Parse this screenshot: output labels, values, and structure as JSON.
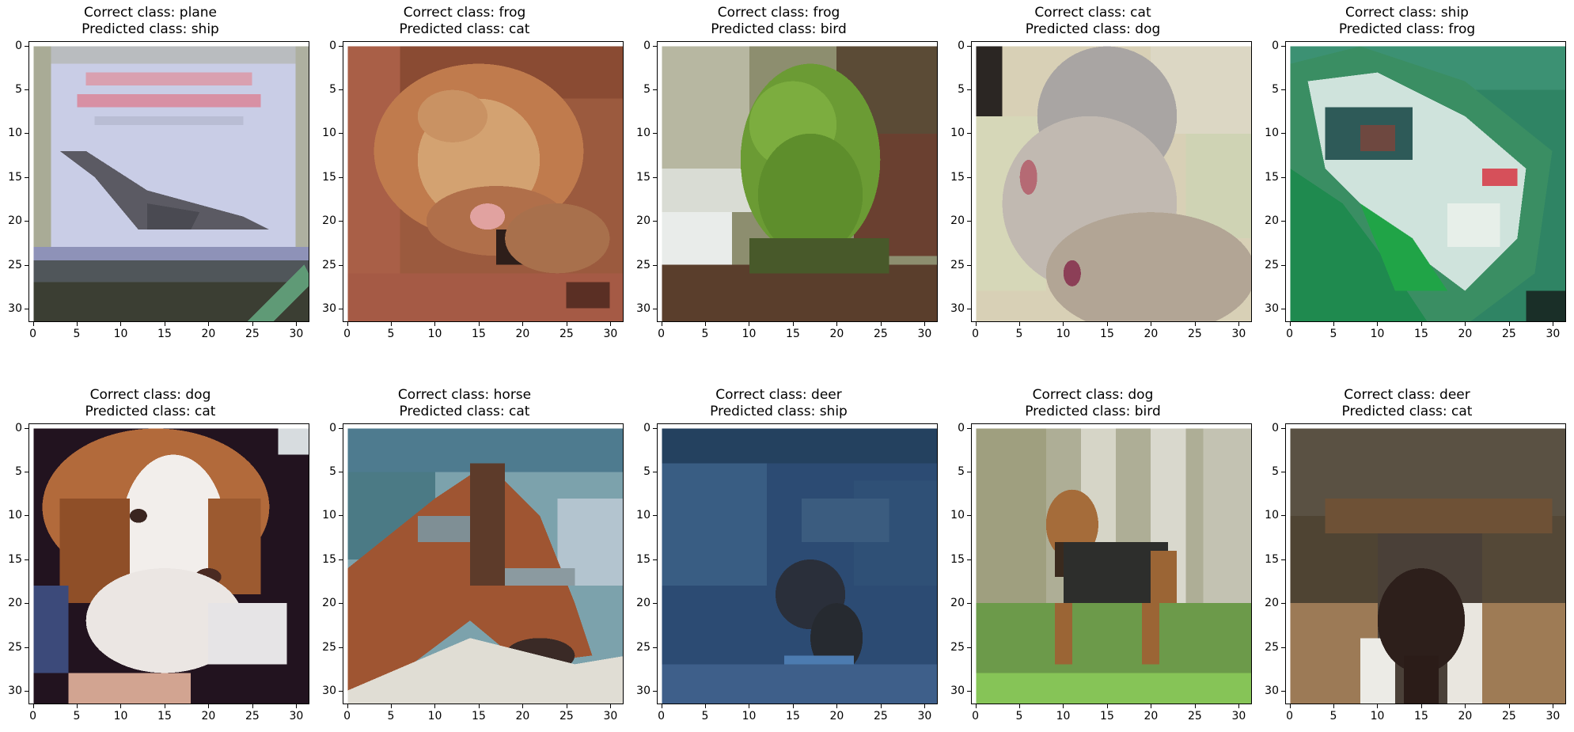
{
  "figure": {
    "panels": [
      {
        "correct": "Correct class: plane",
        "predicted": "Predicted class: ship",
        "scene": "plane"
      },
      {
        "correct": "Correct class: frog",
        "predicted": "Predicted class: cat",
        "scene": "frog-brown"
      },
      {
        "correct": "Correct class: frog",
        "predicted": "Predicted class: bird",
        "scene": "frog-green"
      },
      {
        "correct": "Correct class: cat",
        "predicted": "Predicted class: dog",
        "scene": "cat"
      },
      {
        "correct": "Correct class: ship",
        "predicted": "Predicted class: frog",
        "scene": "ship"
      },
      {
        "correct": "Correct class: dog",
        "predicted": "Predicted class: cat",
        "scene": "dog-beagle"
      },
      {
        "correct": "Correct class: horse",
        "predicted": "Predicted class: cat",
        "scene": "horse"
      },
      {
        "correct": "Correct class: deer",
        "predicted": "Predicted class: ship",
        "scene": "deer-blue"
      },
      {
        "correct": "Correct class: dog",
        "predicted": "Predicted class: bird",
        "scene": "dog-terrier"
      },
      {
        "correct": "Correct class: deer",
        "predicted": "Predicted class: cat",
        "scene": "deer-brown"
      }
    ],
    "axis_ticks": [
      "0",
      "5",
      "10",
      "15",
      "20",
      "25",
      "30"
    ]
  }
}
